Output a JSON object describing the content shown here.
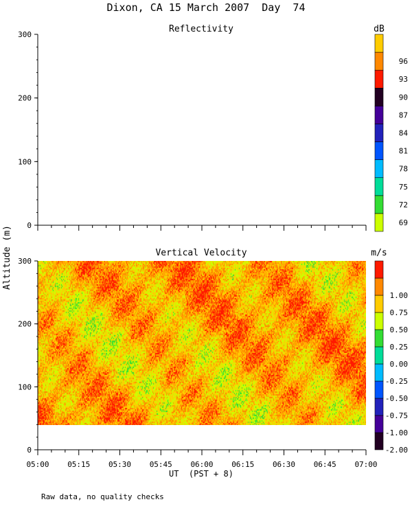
{
  "figure": {
    "title": "Dixon, CA 15 March 2007  Day  74",
    "shared_ylabel": "Altitude (m)",
    "xlabel": "UT  (PST + 8)",
    "footnote": "Raw data, no quality checks"
  },
  "chart_data": [
    {
      "type": "heatmap",
      "title": "Reflectivity",
      "colorbar_unit": "dB",
      "xlabel": "UT  (PST + 8)",
      "ylabel": "Altitude (m)",
      "x_ticks": [
        "05:00",
        "05:15",
        "05:30",
        "05:45",
        "06:00",
        "06:15",
        "06:30",
        "06:45",
        "07:00"
      ],
      "xlim": [
        "05:00",
        "07:00"
      ],
      "ylim": [
        0,
        300
      ],
      "y_ticks": [
        0,
        100,
        200,
        300
      ],
      "colorbar_levels": [
        69,
        72,
        75,
        78,
        81,
        84,
        87,
        90,
        93,
        96
      ],
      "colorbar_colors": [
        "#ccff00",
        "#33dd33",
        "#00dd99",
        "#00bbff",
        "#0055ff",
        "#2222bb",
        "#440099",
        "#220022",
        "#ff1a00",
        "#ff8800",
        "#ffcc00"
      ],
      "data_present": false
    },
    {
      "type": "heatmap",
      "title": "Vertical Velocity",
      "colorbar_unit": "m/s",
      "xlabel": "UT  (PST + 8)",
      "ylabel": "Altitude (m)",
      "x_ticks": [
        "05:00",
        "05:15",
        "05:30",
        "05:45",
        "06:00",
        "06:15",
        "06:30",
        "06:45",
        "07:00"
      ],
      "xlim": [
        "05:00",
        "07:00"
      ],
      "ylim": [
        0,
        300
      ],
      "y_ticks": [
        0,
        100,
        200,
        300
      ],
      "colorbar_levels": [
        "-2.00",
        "-1.00",
        "-0.75",
        "-0.50",
        "-0.25",
        "0.00",
        "0.25",
        "0.50",
        "0.75",
        "1.00"
      ],
      "colorbar_colors": [
        "#220022",
        "#440099",
        "#2222bb",
        "#0055ff",
        "#00bbff",
        "#00dd99",
        "#33dd33",
        "#ccff00",
        "#ffcc00",
        "#ff8800",
        "#ff1a00"
      ],
      "data_present": true,
      "data_altitude_range": [
        40,
        300
      ],
      "data_time_range": [
        "05:00",
        "07:00"
      ],
      "dominant_values": [
        "0.50",
        "0.75",
        "1.00"
      ]
    }
  ]
}
